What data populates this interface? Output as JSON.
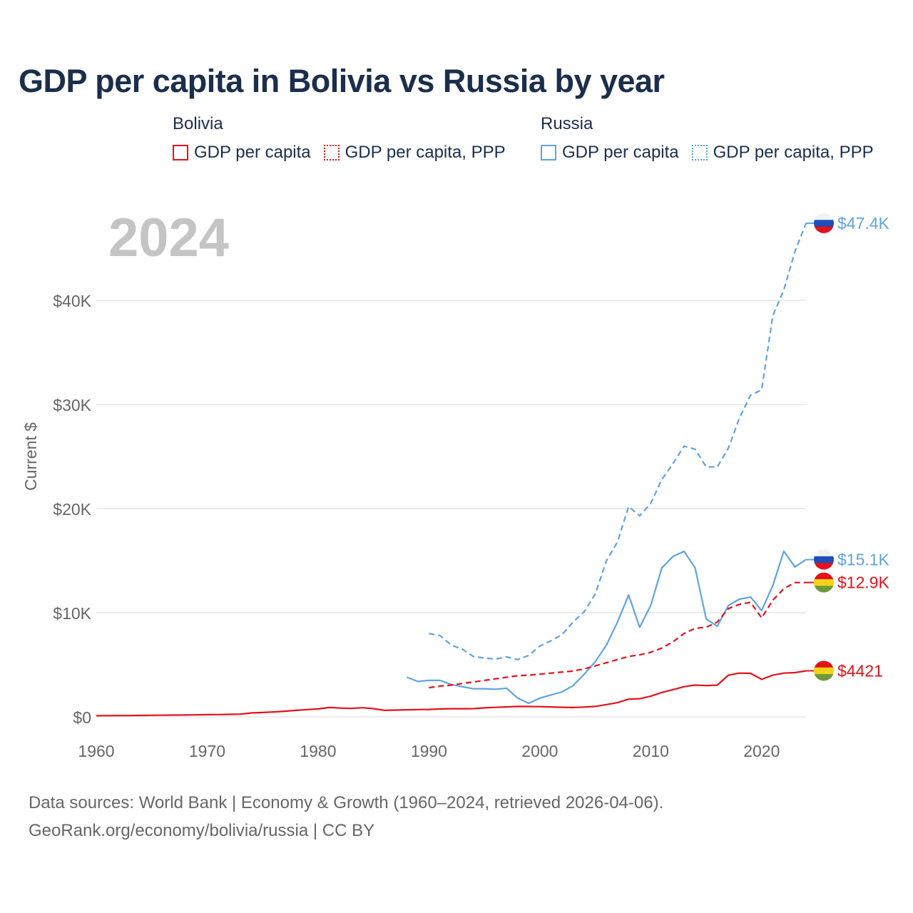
{
  "title": "GDP per capita in Bolivia vs Russia by year",
  "year_label": "2024",
  "legend": {
    "bolivia": {
      "country": "Bolivia",
      "items": [
        "GDP per capita",
        "GDP per capita, PPP"
      ]
    },
    "russia": {
      "country": "Russia",
      "items": [
        "GDP per capita",
        "GDP per capita, PPP"
      ]
    }
  },
  "colors": {
    "bolivia": "#e3121b",
    "russia": "#5fa3e0",
    "grid": "#e6e6e6",
    "axis_text": "#666666"
  },
  "footer": {
    "line1": "Data sources: World Bank | Economy & Growth (1960–2024, retrieved 2026-04-06).",
    "line2": "GeoRank.org/economy/bolivia/russia | CC BY"
  },
  "chart_data": {
    "type": "line",
    "title": "GDP per capita in Bolivia vs Russia by year",
    "xlabel": "",
    "ylabel": "Current $",
    "xlim": [
      1960,
      2024
    ],
    "ylim": [
      0,
      47400
    ],
    "x_ticks": [
      1960,
      1970,
      1980,
      1990,
      2000,
      2010,
      2020
    ],
    "x_tick_labels": [
      "1960",
      "1970",
      "1980",
      "1990",
      "2000",
      "2010",
      "2020"
    ],
    "y_ticks": [
      0,
      10000,
      20000,
      30000,
      40000
    ],
    "y_tick_labels": [
      "$0",
      "$10K",
      "$20K",
      "$30K",
      "$40K"
    ],
    "series": [
      {
        "name": "Russia GDP per capita, PPP",
        "country": "russia",
        "dashed": true,
        "end_label": "$47.4K",
        "flag": "russia",
        "x": [
          1990,
          1991,
          1992,
          1993,
          1994,
          1995,
          1996,
          1997,
          1998,
          1999,
          2000,
          2001,
          2002,
          2003,
          2004,
          2005,
          2006,
          2007,
          2008,
          2009,
          2010,
          2011,
          2012,
          2013,
          2014,
          2015,
          2016,
          2017,
          2018,
          2019,
          2020,
          2021,
          2022,
          2023,
          2024
        ],
        "values": [
          8000,
          7800,
          6900,
          6500,
          5800,
          5650,
          5550,
          5750,
          5500,
          5900,
          6800,
          7300,
          7900,
          9100,
          10100,
          11800,
          15000,
          16800,
          20200,
          19300,
          20500,
          22800,
          24300,
          26000,
          25700,
          24000,
          24000,
          25800,
          28700,
          30900,
          31400,
          38500,
          41000,
          44700,
          47400
        ]
      },
      {
        "name": "Russia GDP per capita",
        "country": "russia",
        "dashed": false,
        "end_label": "$15.1K",
        "flag": "russia",
        "x": [
          1988,
          1989,
          1990,
          1991,
          1992,
          1993,
          1994,
          1995,
          1996,
          1997,
          1998,
          1999,
          2000,
          2001,
          2002,
          2003,
          2004,
          2005,
          2006,
          2007,
          2008,
          2009,
          2010,
          2011,
          2012,
          2013,
          2014,
          2015,
          2016,
          2017,
          2018,
          2019,
          2020,
          2021,
          2022,
          2023,
          2024
        ],
        "values": [
          3800,
          3400,
          3500,
          3500,
          3100,
          2900,
          2700,
          2700,
          2650,
          2750,
          1800,
          1300,
          1800,
          2100,
          2400,
          3000,
          4100,
          5300,
          6900,
          9100,
          11700,
          8600,
          10700,
          14300,
          15400,
          15900,
          14300,
          9400,
          8700,
          10700,
          11300,
          11500,
          10200,
          12600,
          15900,
          14400,
          15100
        ]
      },
      {
        "name": "Bolivia GDP per capita, PPP",
        "country": "bolivia",
        "dashed": true,
        "end_label": "$12.9K",
        "flag": "bolivia",
        "x": [
          1990,
          1991,
          1992,
          1993,
          1994,
          1995,
          1996,
          1997,
          1998,
          1999,
          2000,
          2001,
          2002,
          2003,
          2004,
          2005,
          2006,
          2007,
          2008,
          2009,
          2010,
          2011,
          2012,
          2013,
          2014,
          2015,
          2016,
          2017,
          2018,
          2019,
          2020,
          2021,
          2022,
          2023,
          2024
        ],
        "values": [
          2800,
          2950,
          3050,
          3200,
          3350,
          3500,
          3650,
          3800,
          3950,
          4000,
          4100,
          4200,
          4300,
          4400,
          4600,
          4900,
          5200,
          5500,
          5800,
          5950,
          6200,
          6600,
          7200,
          8000,
          8500,
          8600,
          9100,
          10400,
          10800,
          11000,
          9500,
          11200,
          12300,
          12900,
          12900
        ]
      },
      {
        "name": "Bolivia GDP per capita",
        "country": "bolivia",
        "dashed": false,
        "end_label": "$4421",
        "flag": "bolivia",
        "x": [
          1960,
          1961,
          1962,
          1963,
          1964,
          1965,
          1966,
          1967,
          1968,
          1969,
          1970,
          1971,
          1972,
          1973,
          1974,
          1975,
          1976,
          1977,
          1978,
          1979,
          1980,
          1981,
          1982,
          1983,
          1984,
          1985,
          1986,
          1987,
          1988,
          1989,
          1990,
          1991,
          1992,
          1993,
          1994,
          1995,
          1996,
          1997,
          1998,
          1999,
          2000,
          2001,
          2002,
          2003,
          2004,
          2005,
          2006,
          2007,
          2008,
          2009,
          2010,
          2011,
          2012,
          2013,
          2014,
          2015,
          2016,
          2017,
          2018,
          2019,
          2020,
          2021,
          2022,
          2023,
          2024
        ],
        "values": [
          110,
          115,
          120,
          125,
          140,
          150,
          160,
          170,
          180,
          190,
          210,
          220,
          240,
          260,
          380,
          420,
          470,
          540,
          620,
          700,
          760,
          900,
          840,
          810,
          880,
          790,
          620,
          650,
          680,
          700,
          710,
          760,
          780,
          780,
          790,
          860,
          910,
          950,
          1000,
          990,
          980,
          950,
          920,
          900,
          940,
          1000,
          1180,
          1360,
          1700,
          1740,
          1980,
          2340,
          2610,
          2900,
          3050,
          3000,
          3050,
          4000,
          4200,
          4180,
          3600,
          4000,
          4200,
          4250,
          4421
        ]
      }
    ]
  }
}
